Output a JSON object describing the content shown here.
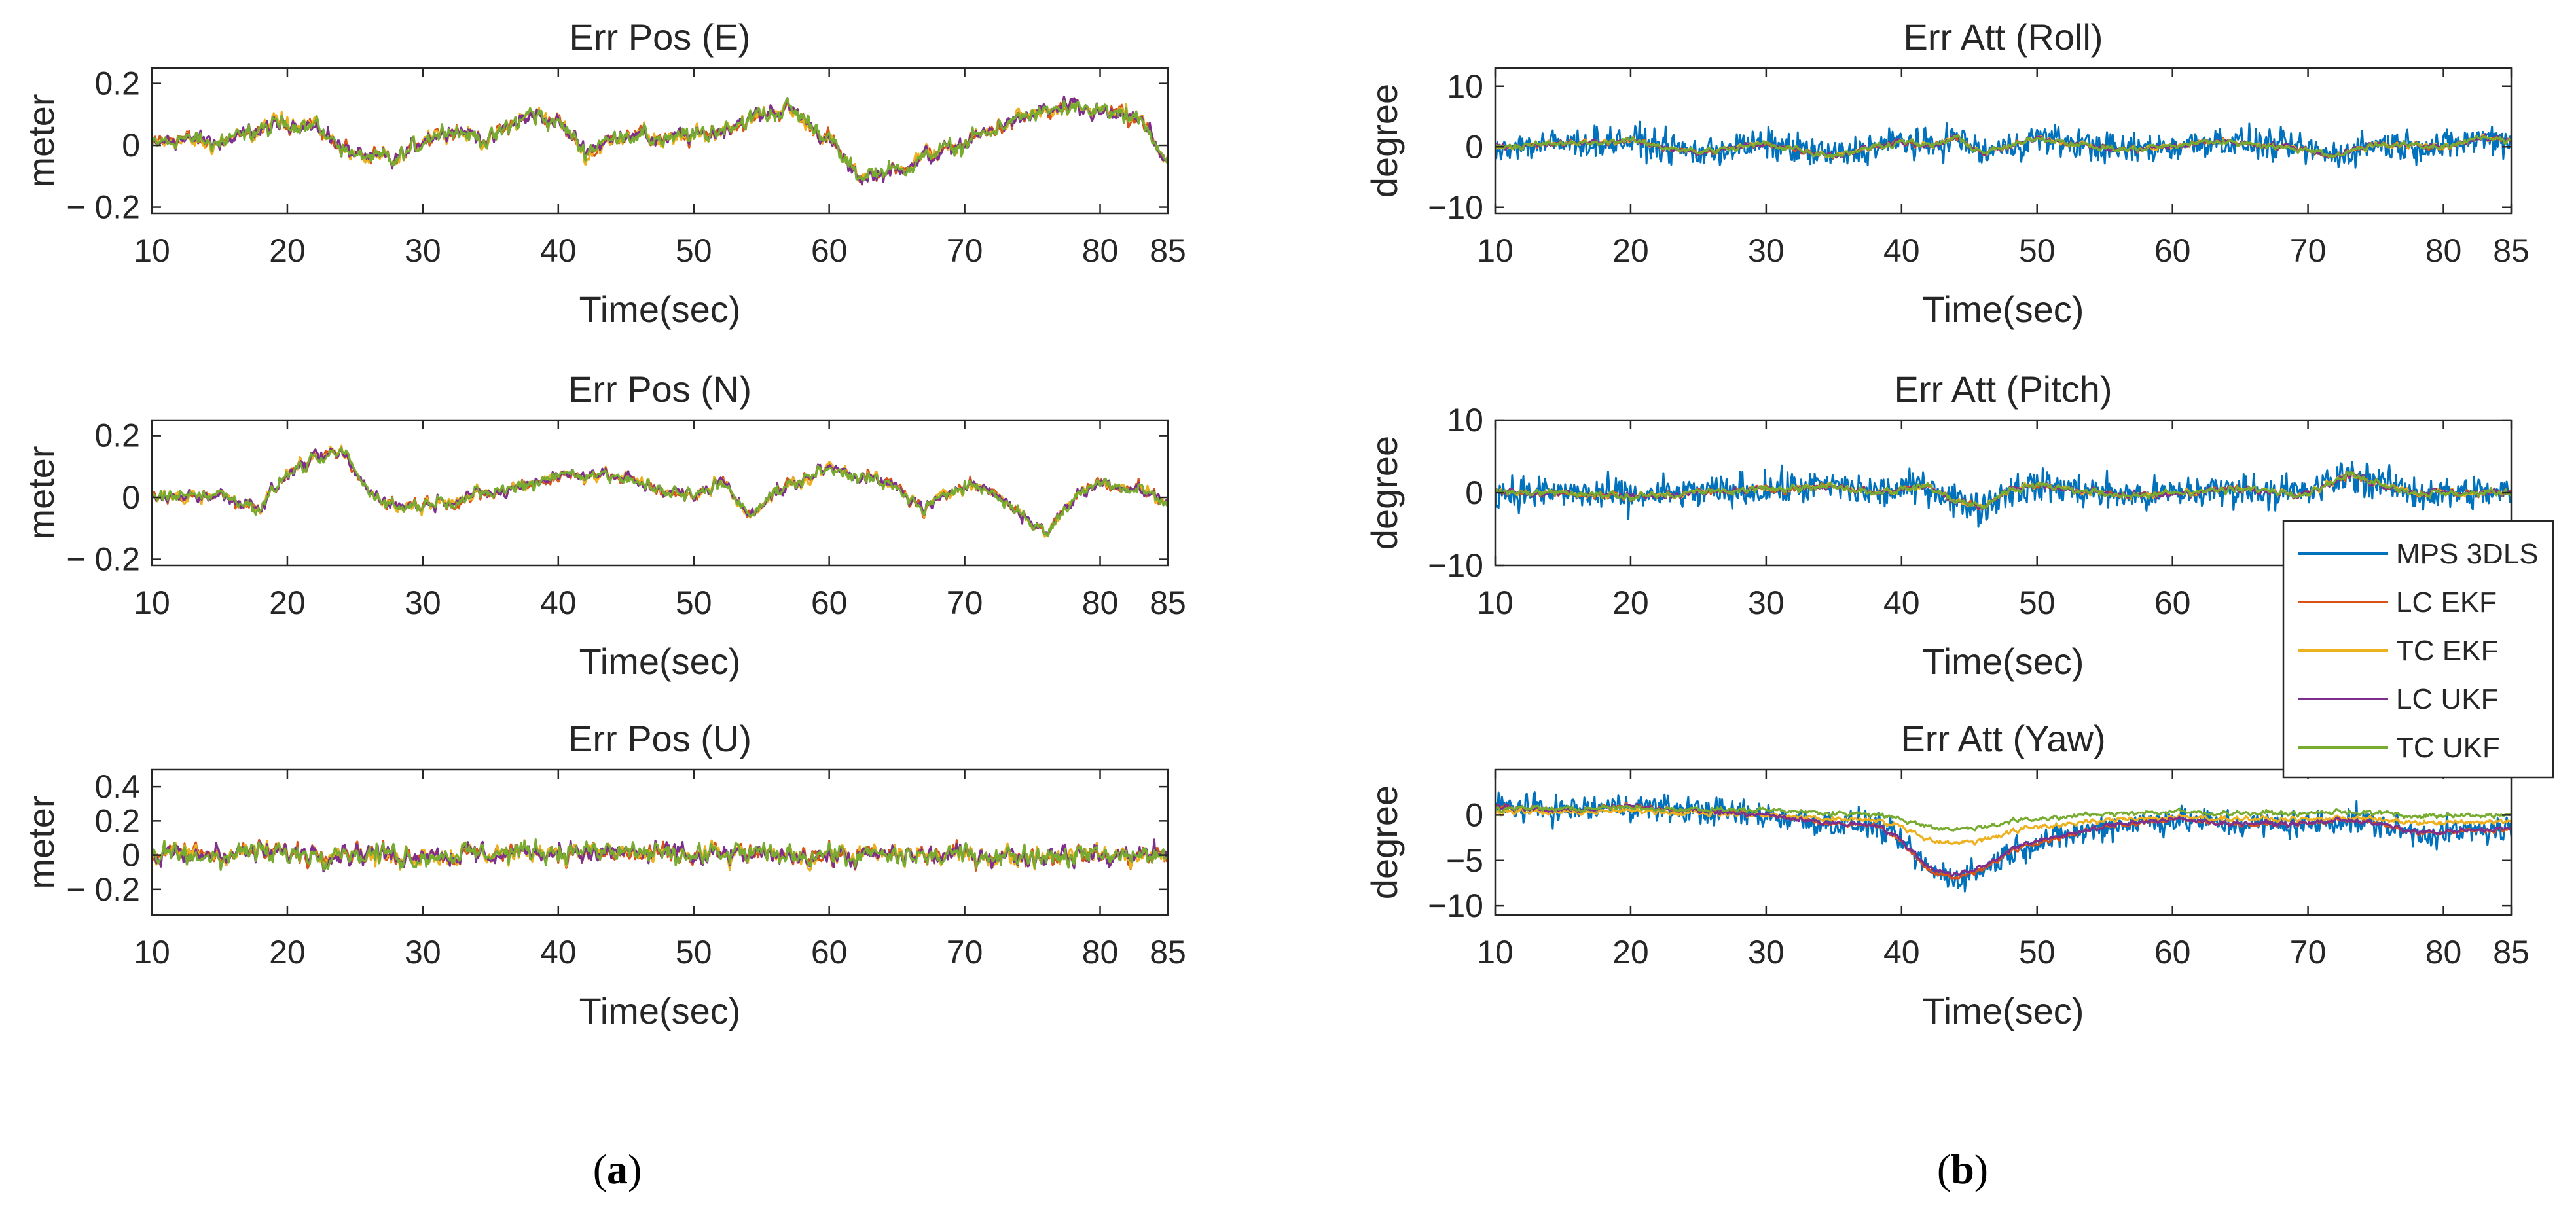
{
  "chart_data": [
    {
      "type": "line",
      "id": "pos-e",
      "title": "Err Pos (E)",
      "xlabel": "Time(sec)",
      "ylabel": "meter",
      "xlim": [
        10,
        85
      ],
      "ylim": [
        -0.22,
        0.25
      ],
      "xticks": [
        10,
        20,
        30,
        40,
        50,
        60,
        70,
        80,
        85
      ],
      "yticks": [
        -0.2,
        0,
        0.2
      ],
      "ytick_labels": [
        "− 0.2",
        "0",
        "0.2"
      ],
      "series_names": [
        "LC EKF",
        "TC EKF",
        "LC UKF",
        "TC UKF"
      ],
      "profile": [
        [
          10,
          0
        ],
        [
          12,
          0.02
        ],
        [
          15,
          0.01
        ],
        [
          18,
          0.05
        ],
        [
          20,
          0.08
        ],
        [
          22,
          0.06
        ],
        [
          25,
          -0.03
        ],
        [
          28,
          -0.05
        ],
        [
          30,
          0.02
        ],
        [
          32,
          0.05
        ],
        [
          35,
          0.02
        ],
        [
          38,
          0.1
        ],
        [
          40,
          0.08
        ],
        [
          42,
          -0.02
        ],
        [
          45,
          0.04
        ],
        [
          48,
          0.02
        ],
        [
          50,
          0.03
        ],
        [
          52,
          0.05
        ],
        [
          55,
          0.1
        ],
        [
          57,
          0.12
        ],
        [
          60,
          0.02
        ],
        [
          62,
          -0.1
        ],
        [
          65,
          -0.08
        ],
        [
          68,
          -0.02
        ],
        [
          70,
          0.0
        ],
        [
          72,
          0.05
        ],
        [
          75,
          0.1
        ],
        [
          78,
          0.12
        ],
        [
          80,
          0.11
        ],
        [
          83,
          0.08
        ],
        [
          85,
          -0.06
        ]
      ],
      "noise": 0.05
    },
    {
      "type": "line",
      "id": "pos-n",
      "title": "Err Pos (N)",
      "xlabel": "Time(sec)",
      "ylabel": "meter",
      "xlim": [
        10,
        85
      ],
      "ylim": [
        -0.22,
        0.25
      ],
      "xticks": [
        10,
        20,
        30,
        40,
        50,
        60,
        70,
        80,
        85
      ],
      "yticks": [
        -0.2,
        0,
        0.2
      ],
      "ytick_labels": [
        "− 0.2",
        "0",
        "0.2"
      ],
      "series_names": [
        "LC EKF",
        "TC EKF",
        "LC UKF",
        "TC UKF"
      ],
      "profile": [
        [
          10,
          0
        ],
        [
          15,
          0.01
        ],
        [
          18,
          -0.03
        ],
        [
          20,
          0.08
        ],
        [
          22,
          0.12
        ],
        [
          24,
          0.15
        ],
        [
          26,
          0.02
        ],
        [
          28,
          -0.03
        ],
        [
          30,
          -0.02
        ],
        [
          33,
          0.0
        ],
        [
          36,
          0.02
        ],
        [
          38,
          0.05
        ],
        [
          40,
          0.07
        ],
        [
          42,
          0.08
        ],
        [
          45,
          0.06
        ],
        [
          48,
          0.02
        ],
        [
          50,
          0.0
        ],
        [
          52,
          0.06
        ],
        [
          54,
          -0.06
        ],
        [
          56,
          0.02
        ],
        [
          58,
          0.05
        ],
        [
          60,
          0.1
        ],
        [
          63,
          0.06
        ],
        [
          65,
          0.03
        ],
        [
          67,
          -0.04
        ],
        [
          70,
          0.05
        ],
        [
          72,
          0.02
        ],
        [
          75,
          -0.08
        ],
        [
          76,
          -0.12
        ],
        [
          78,
          0.0
        ],
        [
          80,
          0.05
        ],
        [
          83,
          0.03
        ],
        [
          85,
          -0.02
        ]
      ],
      "noise": 0.04
    },
    {
      "type": "line",
      "id": "pos-u",
      "title": "Err Pos (U)",
      "xlabel": "Time(sec)",
      "ylabel": "meter",
      "xlim": [
        10,
        85
      ],
      "ylim": [
        -0.35,
        0.5
      ],
      "xticks": [
        10,
        20,
        30,
        40,
        50,
        60,
        70,
        80,
        85
      ],
      "yticks": [
        -0.2,
        0,
        0.2,
        0.4
      ],
      "ytick_labels": [
        "− 0.2",
        "0",
        "0.2",
        "0.4"
      ],
      "series_names": [
        "LC EKF",
        "TC EKF",
        "LC UKF",
        "TC UKF"
      ],
      "profile": [
        [
          10,
          0
        ],
        [
          20,
          0.02
        ],
        [
          30,
          0.0
        ],
        [
          40,
          0.02
        ],
        [
          50,
          0.0
        ],
        [
          60,
          0.0
        ],
        [
          70,
          0.0
        ],
        [
          80,
          0.0
        ],
        [
          85,
          0.0
        ]
      ],
      "noise": 0.11
    },
    {
      "type": "line",
      "id": "att-roll",
      "title": "Err Att (Roll)",
      "xlabel": "Time(sec)",
      "ylabel": "degree",
      "xlim": [
        10,
        85
      ],
      "ylim": [
        -11,
        13
      ],
      "xticks": [
        10,
        20,
        30,
        40,
        50,
        60,
        70,
        80,
        85
      ],
      "yticks": [
        -10,
        0,
        10
      ],
      "ytick_labels": [
        "−10",
        "0",
        "10"
      ],
      "series_names": [
        "MPS 3DLS",
        "LC EKF",
        "TC EKF",
        "LC UKF",
        "TC UKF"
      ],
      "profile": [
        [
          10,
          0
        ],
        [
          15,
          0.5
        ],
        [
          20,
          1
        ],
        [
          25,
          -1
        ],
        [
          30,
          0.5
        ],
        [
          35,
          -1.5
        ],
        [
          38,
          0
        ],
        [
          40,
          1
        ],
        [
          42,
          0
        ],
        [
          44,
          1.5
        ],
        [
          46,
          -1
        ],
        [
          48,
          0
        ],
        [
          50,
          1.5
        ],
        [
          53,
          0.5
        ],
        [
          56,
          -0.5
        ],
        [
          60,
          0
        ],
        [
          63,
          1
        ],
        [
          66,
          0.5
        ],
        [
          70,
          -0.5
        ],
        [
          72,
          -1.5
        ],
        [
          75,
          0.5
        ],
        [
          80,
          0
        ],
        [
          83,
          1.5
        ],
        [
          85,
          1
        ]
      ],
      "noise": 0.9,
      "raw_noise": 2.2
    },
    {
      "type": "line",
      "id": "att-pitch",
      "title": "Err Att (Pitch)",
      "xlabel": "Time(sec)",
      "ylabel": "degree",
      "xlim": [
        10,
        85
      ],
      "ylim": [
        -10,
        10
      ],
      "xticks": [
        10,
        20,
        30,
        40,
        50,
        60,
        70,
        80,
        85
      ],
      "yticks": [
        -10,
        0,
        10
      ],
      "ytick_labels": [
        "−10",
        "0",
        "10"
      ],
      "series_names": [
        "MPS 3DLS",
        "LC EKF",
        "TC EKF",
        "LC UKF",
        "TC UKF"
      ],
      "profile": [
        [
          10,
          0
        ],
        [
          15,
          0
        ],
        [
          20,
          -0.5
        ],
        [
          25,
          0
        ],
        [
          30,
          0.5
        ],
        [
          35,
          1
        ],
        [
          38,
          0
        ],
        [
          40,
          0.5
        ],
        [
          42,
          1
        ],
        [
          44,
          -1
        ],
        [
          46,
          -2
        ],
        [
          48,
          0.5
        ],
        [
          50,
          1
        ],
        [
          55,
          0
        ],
        [
          58,
          -0.5
        ],
        [
          60,
          0
        ],
        [
          65,
          0.5
        ],
        [
          70,
          0
        ],
        [
          73,
          2.5
        ],
        [
          75,
          1.5
        ],
        [
          78,
          0
        ],
        [
          80,
          0
        ],
        [
          85,
          0
        ]
      ],
      "noise": 0.9,
      "raw_noise": 2.0
    },
    {
      "type": "line",
      "id": "att-yaw",
      "title": "Err Att (Yaw)",
      "xlabel": "Time(sec)",
      "ylabel": "degree",
      "xlim": [
        10,
        85
      ],
      "ylim": [
        -11,
        5
      ],
      "xticks": [
        10,
        20,
        30,
        40,
        50,
        60,
        70,
        80,
        85
      ],
      "yticks": [
        -10,
        -5,
        0
      ],
      "ytick_labels": [
        "−10",
        "−5",
        "0"
      ],
      "series_names": [
        "MPS 3DLS",
        "LC EKF",
        "TC EKF",
        "LC UKF",
        "TC UKF"
      ],
      "profile": [
        [
          10,
          1
        ],
        [
          15,
          0.5
        ],
        [
          20,
          1
        ],
        [
          25,
          0.5
        ],
        [
          30,
          0
        ],
        [
          35,
          -1
        ],
        [
          38,
          -1
        ],
        [
          40,
          -3
        ],
        [
          42,
          -6
        ],
        [
          44,
          -7
        ],
        [
          46,
          -6
        ],
        [
          48,
          -4
        ],
        [
          50,
          -3
        ],
        [
          53,
          -2
        ],
        [
          56,
          -1
        ],
        [
          60,
          -0.5
        ],
        [
          65,
          -1
        ],
        [
          70,
          -1
        ],
        [
          73,
          -0.5
        ],
        [
          75,
          -1
        ],
        [
          78,
          -2
        ],
        [
          80,
          -2
        ],
        [
          85,
          -1.5
        ]
      ],
      "noise": 0.5,
      "raw_noise": 1.3
    }
  ],
  "legend": {
    "placement": "right-center",
    "entries": [
      {
        "name": "MPS 3DLS",
        "color": "#0072BD"
      },
      {
        "name": "LC EKF",
        "color": "#D95319"
      },
      {
        "name": "TC EKF",
        "color": "#EDB120"
      },
      {
        "name": "LC UKF",
        "color": "#7E2F8E"
      },
      {
        "name": "TC UKF",
        "color": "#77AC30"
      }
    ]
  },
  "colors": {
    "MPS 3DLS": "#0072BD",
    "LC EKF": "#D95319",
    "TC EKF": "#EDB120",
    "LC UKF": "#7E2F8E",
    "TC UKF": "#77AC30"
  },
  "subfig_labels": {
    "a": "a",
    "b": "b"
  }
}
